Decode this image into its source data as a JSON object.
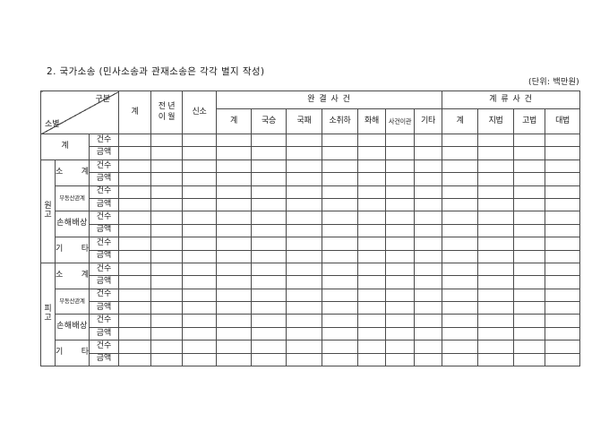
{
  "page": {
    "title": "2. 국가소송 (민사소송과 관재소송은 각각 별지 작성)",
    "unit_note": "(단위: 백만원)"
  },
  "table": {
    "corner": {
      "top": "구분",
      "bottom": "소별"
    },
    "head": {
      "total": "계",
      "carried_over": [
        "전 년",
        "이 월"
      ],
      "new_case": "신소",
      "completed_group": "완 결 사 건",
      "completed": [
        "계",
        "국승",
        "국패",
        "소취하",
        "화해",
        "사건이관",
        "기타"
      ],
      "pending_group": "계 류 사 건",
      "pending": [
        "계",
        "지법",
        "고법",
        "대법"
      ]
    },
    "side": {
      "grand_total": "계",
      "plaintiff": [
        "원",
        "고"
      ],
      "defendant": [
        "피",
        "고"
      ],
      "categories": [
        "소 계",
        "부동산관계",
        "손해배상",
        "기 타"
      ],
      "metric_cases": "건수",
      "metric_amount": "금액"
    }
  }
}
